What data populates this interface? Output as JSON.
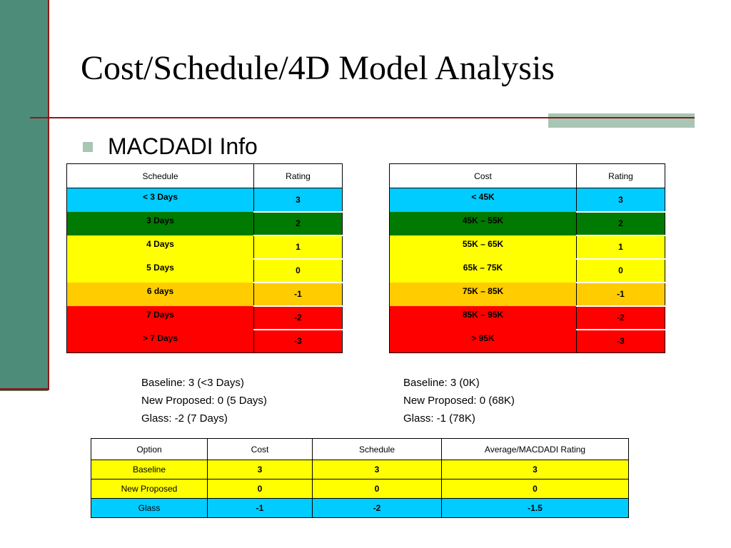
{
  "title": "Cost/Schedule/4D Model Analysis",
  "bullet": "MACDADI Info",
  "colors": {
    "cyan": "#00ccff",
    "green": "#007a00",
    "yellow": "#ffff00",
    "orange": "#ffcc00",
    "red": "#ff0000",
    "accent": "#4e8c7a",
    "rule": "#8b1a1a"
  },
  "schedule_table": {
    "headers": [
      "Schedule",
      "Rating"
    ],
    "rows": [
      {
        "label": "< 3 Days",
        "rating": "3",
        "color": "#00ccff"
      },
      {
        "label": "3 Days",
        "rating": "2",
        "color": "#007a00"
      },
      {
        "label": "4 Days",
        "rating": "1",
        "color": "#ffff00"
      },
      {
        "label": "5 Days",
        "rating": "0",
        "color": "#ffff00"
      },
      {
        "label": "6 days",
        "rating": "-1",
        "color": "#ffcc00"
      },
      {
        "label": "7 Days",
        "rating": "-2",
        "color": "#ff0000"
      },
      {
        "label": "> 7 Days",
        "rating": "-3",
        "color": "#ff0000"
      }
    ]
  },
  "cost_table": {
    "headers": [
      "Cost",
      "Rating"
    ],
    "rows": [
      {
        "label": "< 45K",
        "rating": "3",
        "color": "#00ccff"
      },
      {
        "label": "45K – 55K",
        "rating": "2",
        "color": "#007a00"
      },
      {
        "label": "55K – 65K",
        "rating": "1",
        "color": "#ffff00"
      },
      {
        "label": "65k – 75K",
        "rating": "0",
        "color": "#ffff00"
      },
      {
        "label": "75K – 85K",
        "rating": "-1",
        "color": "#ffcc00"
      },
      {
        "label": "85K – 95K",
        "rating": "-2",
        "color": "#ff0000"
      },
      {
        "label": "> 95K",
        "rating": "-3",
        "color": "#ff0000"
      }
    ]
  },
  "schedule_notes": [
    "Baseline: 3 (<3 Days)",
    "New Proposed: 0 (5 Days)",
    "Glass: -2 (7 Days)"
  ],
  "cost_notes": [
    "Baseline: 3 (0K)",
    "New Proposed: 0 (68K)",
    "Glass: -1 (78K)"
  ],
  "summary_table": {
    "headers": [
      "Option",
      "Cost",
      "Schedule",
      "Average/MACDADI Rating"
    ],
    "rows": [
      {
        "cells": [
          "Baseline",
          "3",
          "3",
          "3"
        ],
        "color": "#ffff00"
      },
      {
        "cells": [
          "New Proposed",
          "0",
          "0",
          "0"
        ],
        "color": "#ffff00"
      },
      {
        "cells": [
          "Glass",
          "-1",
          "-2",
          "-1.5"
        ],
        "color": "#00ccff"
      }
    ]
  }
}
